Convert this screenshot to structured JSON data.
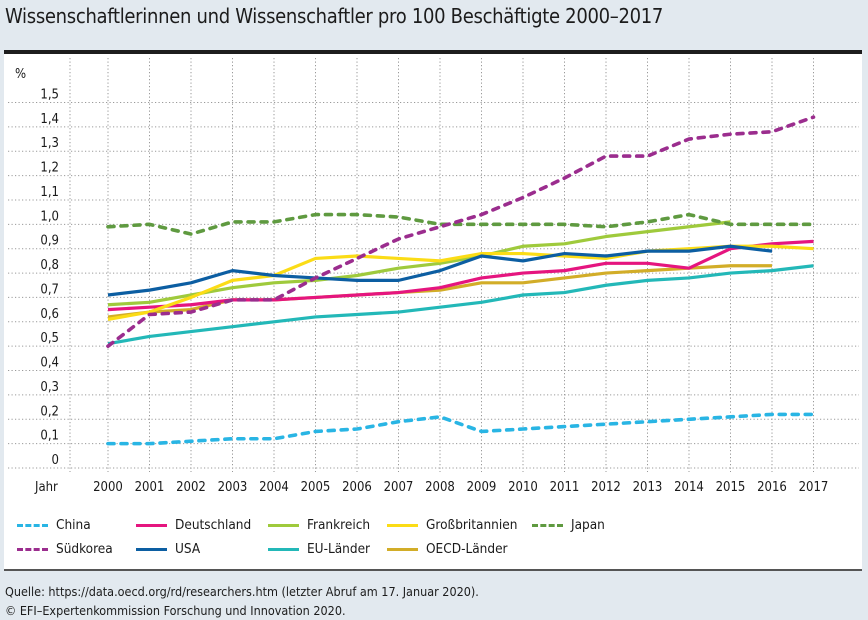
{
  "title": "Wissenschaftlerinnen und Wissenschaftler pro 100 Beschäftigte 2000–2017",
  "footer": {
    "source": "Quelle: https://data.oecd.org/rd/researchers.htm (letzter Abruf am 17. Januar 2020).",
    "copyright": "© EFI–Expertenkommission Forschung und Innovation 2020."
  },
  "chart_data": {
    "type": "line",
    "title": "Wissenschaftlerinnen und Wissenschaftler pro 100 Beschäftigte 2000–2017",
    "xlabel": "Jahr",
    "ylabel": "%",
    "ylim": [
      0,
      1.5
    ],
    "yticks": [
      "0",
      "0,1",
      "0,2",
      "0,3",
      "0,4",
      "0,5",
      "0,6",
      "0,7",
      "0,8",
      "0,9",
      "1,0",
      "1,1",
      "1,2",
      "1,3",
      "1,4",
      "1,5"
    ],
    "grid": true,
    "legend_position": "bottom",
    "x": [
      "2000",
      "2001",
      "2002",
      "2003",
      "2004",
      "2005",
      "2006",
      "2007",
      "2008",
      "2009",
      "2010",
      "2011",
      "2012",
      "2013",
      "2014",
      "2015",
      "2016",
      "2017"
    ],
    "series": [
      {
        "name": "China",
        "color": "#29b5e4",
        "style": "dashed",
        "values": [
          0.1,
          0.1,
          0.11,
          0.12,
          0.12,
          0.15,
          0.16,
          0.19,
          0.21,
          0.15,
          0.16,
          0.17,
          0.18,
          0.19,
          0.2,
          0.21,
          0.22,
          0.22
        ]
      },
      {
        "name": "Deutschland",
        "color": "#e5157f",
        "style": "solid",
        "values": [
          0.65,
          0.66,
          0.67,
          0.69,
          0.69,
          0.7,
          0.71,
          0.72,
          0.74,
          0.78,
          0.8,
          0.81,
          0.84,
          0.84,
          0.82,
          0.9,
          0.92,
          0.93
        ]
      },
      {
        "name": "Frankreich",
        "color": "#9fca3c",
        "style": "solid",
        "values": [
          0.67,
          0.68,
          0.71,
          0.74,
          0.76,
          0.77,
          0.79,
          0.82,
          0.84,
          0.87,
          0.91,
          0.92,
          0.95,
          0.97,
          0.99,
          1.01,
          null,
          null
        ]
      },
      {
        "name": "Großbritannien",
        "color": "#fbdc16",
        "style": "solid",
        "values": [
          0.61,
          0.64,
          0.7,
          0.77,
          0.79,
          0.86,
          0.87,
          0.86,
          0.85,
          0.88,
          0.88,
          0.87,
          0.86,
          0.89,
          0.9,
          0.91,
          0.91,
          0.9
        ]
      },
      {
        "name": "Japan",
        "color": "#5f9a40",
        "style": "dashed",
        "values": [
          0.99,
          1.0,
          0.96,
          1.01,
          1.01,
          1.04,
          1.04,
          1.03,
          1.0,
          1.0,
          1.0,
          1.0,
          0.99,
          1.01,
          1.04,
          1.0,
          1.0,
          1.0
        ]
      },
      {
        "name": "Südkorea",
        "color": "#9b2d8e",
        "style": "dashed",
        "values": [
          0.5,
          0.63,
          0.64,
          0.69,
          0.69,
          0.78,
          0.86,
          0.94,
          0.99,
          1.04,
          1.11,
          1.19,
          1.28,
          1.28,
          1.35,
          1.37,
          1.38,
          1.44
        ]
      },
      {
        "name": "USA",
        "color": "#0c5ea2",
        "style": "solid",
        "values": [
          0.71,
          0.73,
          0.76,
          0.81,
          0.79,
          0.78,
          0.77,
          0.77,
          0.81,
          0.87,
          0.85,
          0.88,
          0.87,
          0.89,
          0.89,
          0.91,
          0.89,
          null
        ]
      },
      {
        "name": "EU-Länder",
        "color": "#23b8b8",
        "style": "solid",
        "values": [
          0.51,
          0.54,
          0.56,
          0.58,
          0.6,
          0.62,
          0.63,
          0.64,
          0.66,
          0.68,
          0.71,
          0.72,
          0.75,
          0.77,
          0.78,
          0.8,
          0.81,
          0.83
        ]
      },
      {
        "name": "OECD-Länder",
        "color": "#d2ad28",
        "style": "solid",
        "values": [
          0.62,
          0.64,
          0.65,
          0.69,
          0.69,
          0.7,
          0.71,
          0.72,
          0.73,
          0.76,
          0.76,
          0.78,
          0.8,
          0.81,
          0.82,
          0.83,
          0.83,
          null
        ]
      }
    ],
    "legend_order": [
      [
        "China",
        "Deutschland",
        "Frankreich",
        "Großbritannien",
        "Japan"
      ],
      [
        "Südkorea",
        "USA",
        "EU-Länder",
        "OECD-Länder"
      ]
    ]
  }
}
